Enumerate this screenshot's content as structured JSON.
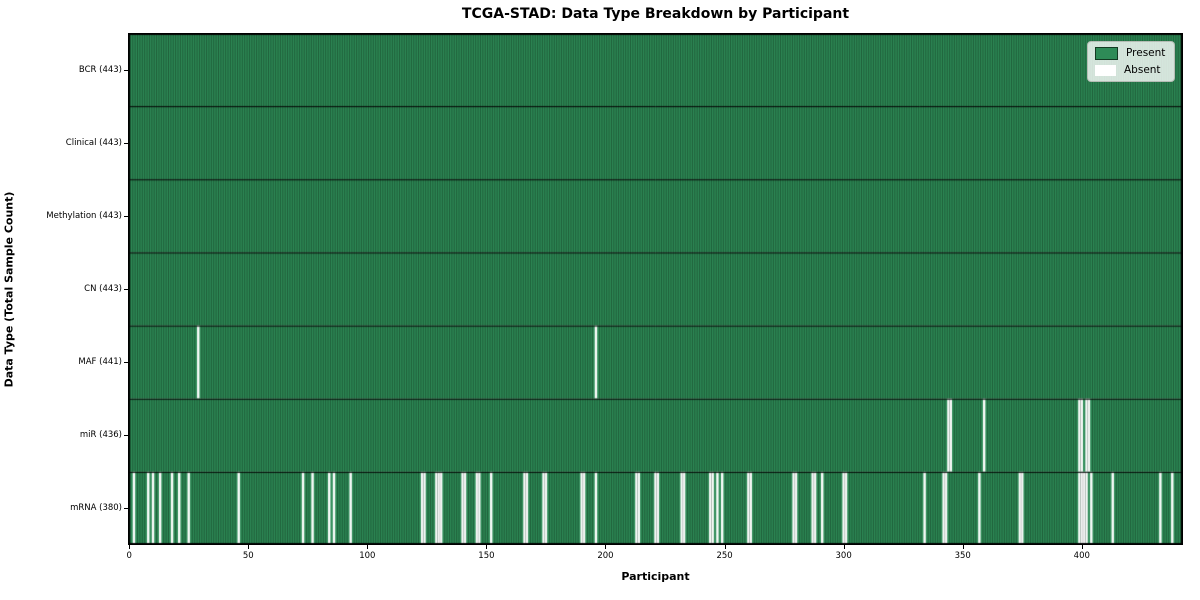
{
  "chart_data": {
    "type": "heatmap",
    "title": "TCGA-STAD: Data Type Breakdown by Participant",
    "xlabel": "Participant",
    "ylabel": "Data Type (Total Sample Count)",
    "n_participants": 443,
    "x_ticks": [
      0,
      50,
      100,
      150,
      200,
      250,
      300,
      350,
      400
    ],
    "grid": false,
    "legend_position": "upper-right",
    "legend": [
      {
        "label": "Present",
        "color": "#2e8b57"
      },
      {
        "label": "Absent",
        "color": "#ffffff"
      }
    ],
    "rows": [
      {
        "label": "BCR (443)",
        "data_type": "BCR",
        "present_count": 443,
        "absent_participants": []
      },
      {
        "label": "Clinical (443)",
        "data_type": "Clinical",
        "present_count": 443,
        "absent_participants": []
      },
      {
        "label": "Methylation (443)",
        "data_type": "Methylation",
        "present_count": 443,
        "absent_participants": []
      },
      {
        "label": "CN (443)",
        "data_type": "CN",
        "present_count": 443,
        "absent_participants": []
      },
      {
        "label": "MAF (441)",
        "data_type": "MAF",
        "present_count": 441,
        "absent_participants": [
          29,
          196
        ]
      },
      {
        "label": "miR (436)",
        "data_type": "miR",
        "present_count": 436,
        "absent_participants": [
          344,
          345,
          359,
          399,
          400,
          402,
          403
        ]
      },
      {
        "label": "mRNA (380)",
        "data_type": "mRNA",
        "present_count": 380,
        "absent_participants": [
          2,
          8,
          10,
          13,
          18,
          21,
          25,
          46,
          73,
          77,
          84,
          86,
          93,
          123,
          124,
          129,
          130,
          131,
          140,
          141,
          146,
          147,
          152,
          166,
          167,
          174,
          175,
          190,
          191,
          196,
          213,
          214,
          221,
          222,
          232,
          233,
          244,
          245,
          247,
          249,
          260,
          261,
          279,
          280,
          287,
          288,
          291,
          300,
          301,
          334,
          342,
          343,
          357,
          374,
          375,
          399,
          400,
          401,
          402,
          404,
          413,
          433,
          438
        ]
      }
    ],
    "colors": {
      "present": "#2e8b57",
      "absent": "#ffffff",
      "cell_edge": "#133a22",
      "absent_separator": "#777777",
      "row_separator": "#000000",
      "plot_border": "#000000"
    }
  }
}
